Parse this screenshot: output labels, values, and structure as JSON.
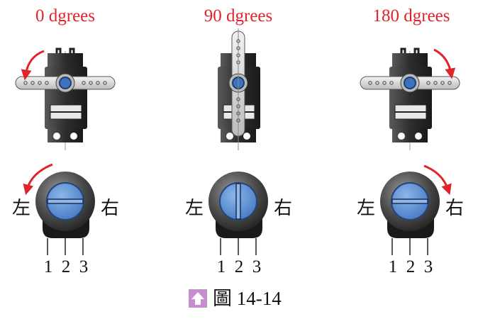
{
  "columns": [
    {
      "angle_label": "0 dgrees",
      "angle_deg": 0
    },
    {
      "angle_label": "90 dgrees",
      "angle_deg": 90
    },
    {
      "angle_label": "180 dgrees",
      "angle_deg": 180
    }
  ],
  "pot": {
    "left_label": "左",
    "right_label": "右",
    "pin_labels": [
      "1",
      "2",
      "3"
    ]
  },
  "caption": {
    "text": "圖 14-14",
    "icon": "up-arrow-icon"
  },
  "colors": {
    "accent_red": "#e0242a",
    "knob_blue": "#4f86d0",
    "body_dark": "#262626",
    "caption_icon": "#c58fce"
  }
}
